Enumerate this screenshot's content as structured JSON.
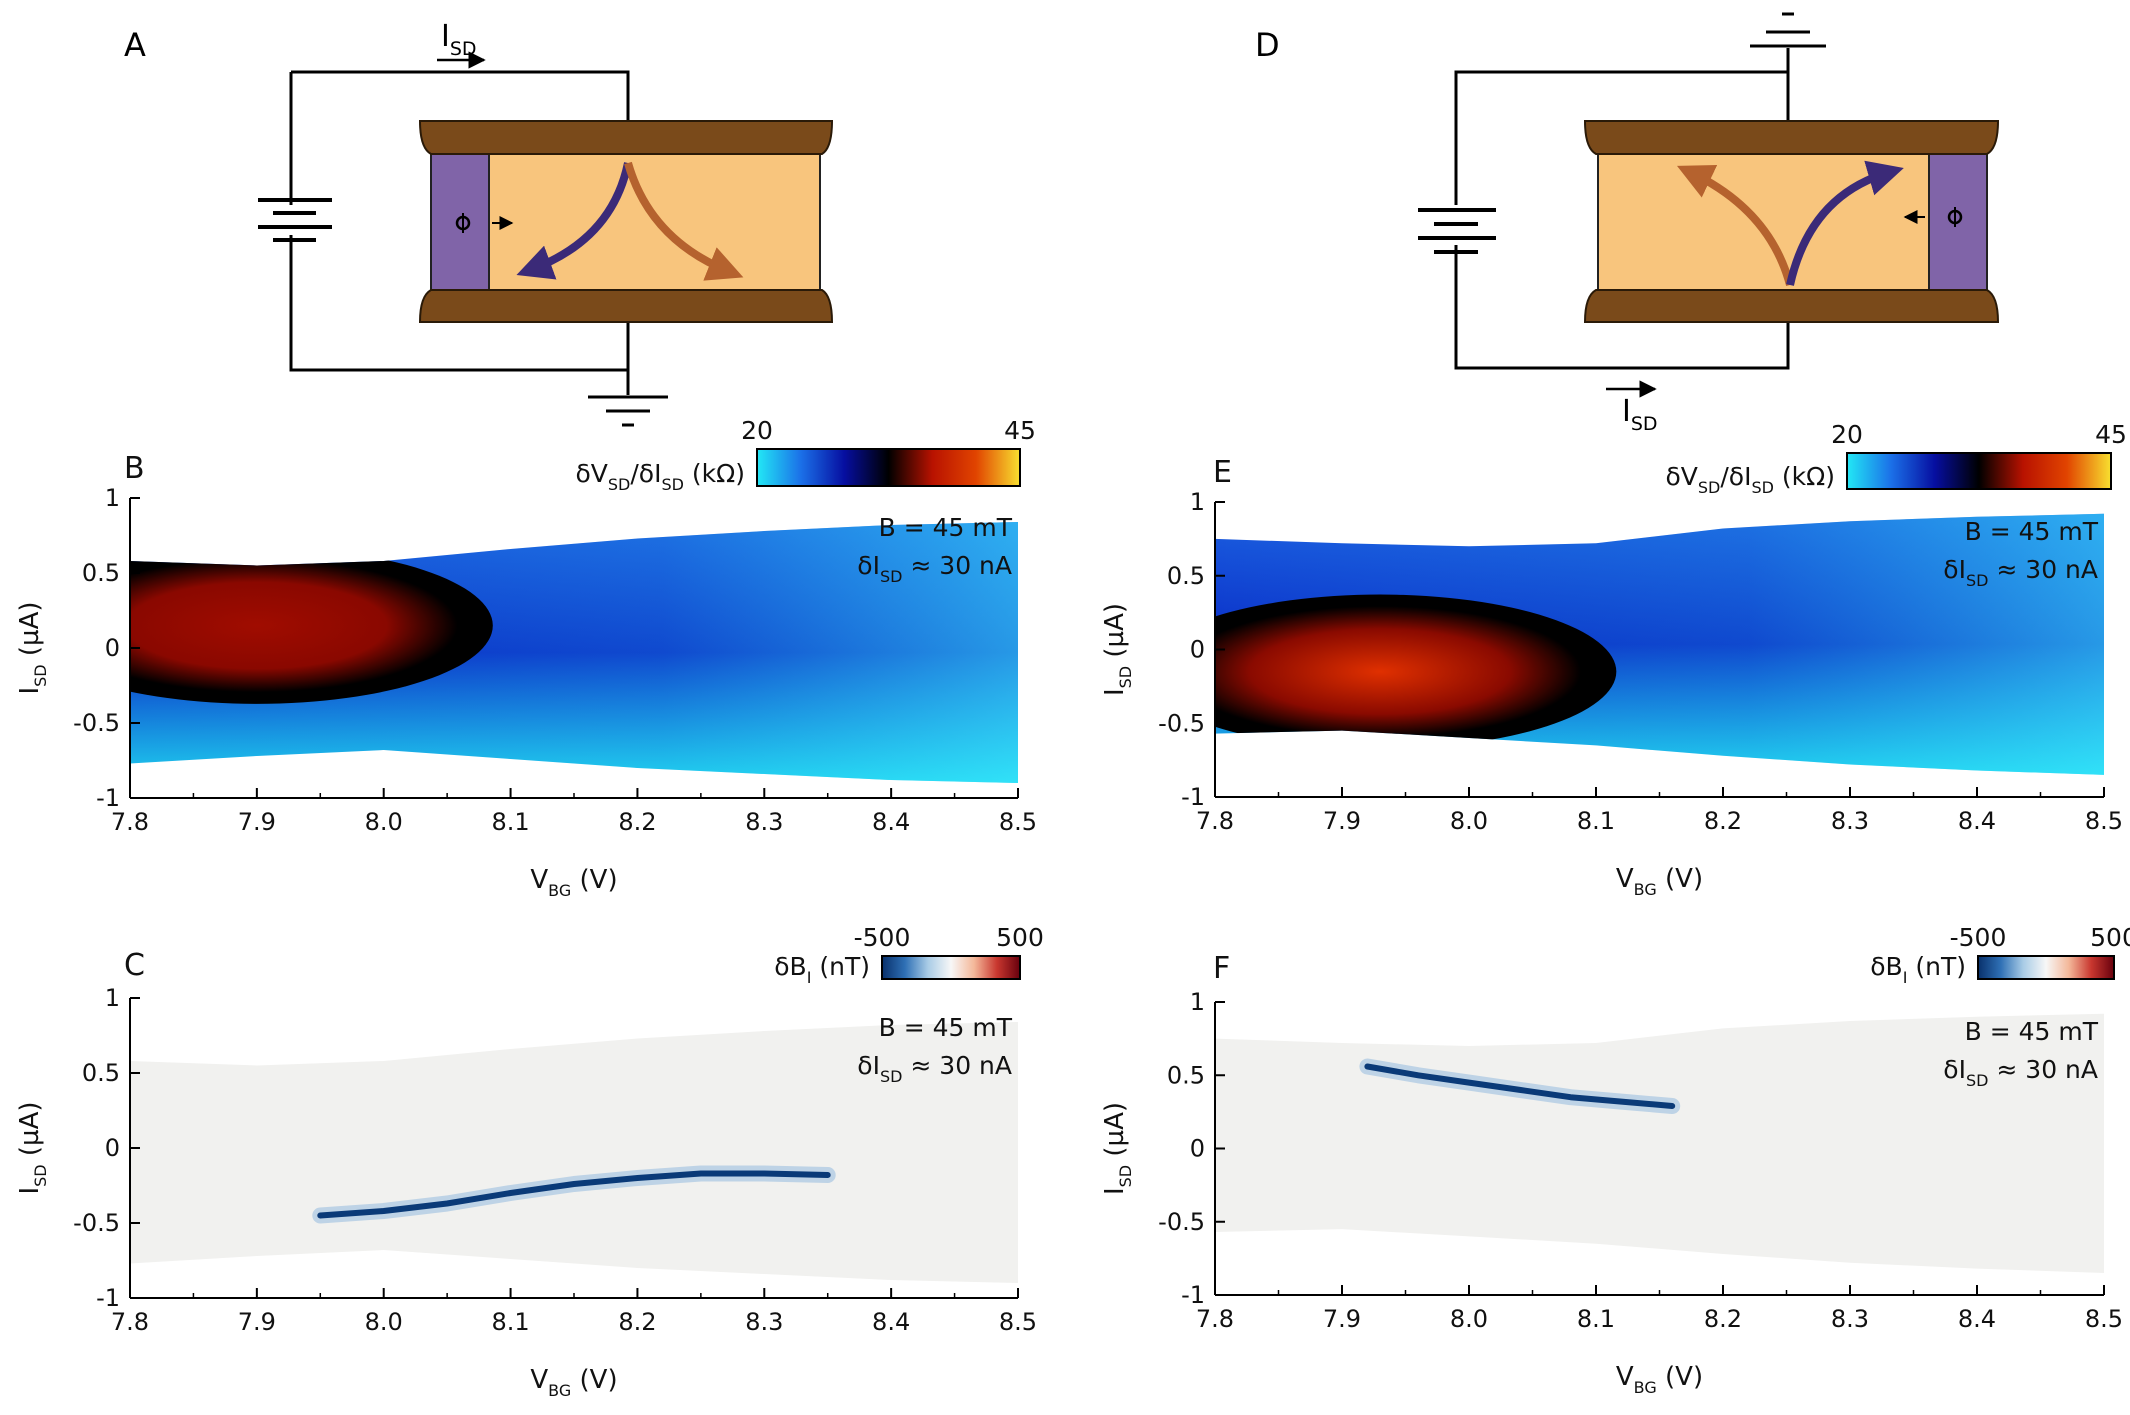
{
  "panels": {
    "A": "A",
    "B": "B",
    "C": "C",
    "D": "D",
    "E": "E",
    "F": "F"
  },
  "circuit": {
    "current_label": "I",
    "current_sub": "SD",
    "ground_minus": "-"
  },
  "chart_data": [
    {
      "panel": "B",
      "type": "heatmap",
      "x": [
        7.8,
        7.9,
        8.0,
        8.1,
        8.2,
        8.3,
        8.4,
        8.5
      ],
      "y_ticks": [
        1,
        0.5,
        0,
        -0.5,
        -1
      ],
      "xlabel": "V",
      "xlabel_sub": "BG",
      "xlabel_unit": " (V)",
      "ylabel": "I",
      "ylabel_sub": "SD",
      "ylabel_unit": " (µA)",
      "xlim": [
        7.8,
        8.5
      ],
      "ylim": [
        -1,
        1
      ],
      "colorbar": {
        "label": "δV",
        "label_sub1": "SD",
        "label_mid": "/δI",
        "label_sub2": "SD",
        "label_unit": " (kΩ)",
        "min": 20,
        "max": 45,
        "colormap": [
          "#22e8f5",
          "#1b70e8",
          "#060ea0",
          "#000000",
          "#b81200",
          "#e14400",
          "#f8e030"
        ]
      },
      "annotations": {
        "field": "B = 45 mT",
        "excitation": "δI",
        "excitation_sub": "SD",
        "excitation_val": " ≈ 30 nA"
      },
      "envelope": {
        "x": [
          7.8,
          7.9,
          8.0,
          8.1,
          8.2,
          8.3,
          8.4,
          8.5
        ],
        "upper": [
          0.58,
          0.55,
          0.58,
          0.66,
          0.73,
          0.78,
          0.82,
          0.84
        ],
        "lower": [
          -0.77,
          -0.72,
          -0.68,
          -0.74,
          -0.8,
          -0.84,
          -0.88,
          -0.9
        ]
      }
    },
    {
      "panel": "C",
      "type": "heatmap",
      "x": [
        7.8,
        7.9,
        8.0,
        8.1,
        8.2,
        8.3,
        8.4,
        8.5
      ],
      "y_ticks": [
        1,
        0.5,
        0,
        -0.5,
        -1
      ],
      "xlabel": "V",
      "xlabel_sub": "BG",
      "xlabel_unit": " (V)",
      "ylabel": "I",
      "ylabel_sub": "SD",
      "ylabel_unit": " (µA)",
      "xlim": [
        7.8,
        8.5
      ],
      "ylim": [
        -1,
        1
      ],
      "colorbar": {
        "label": "δB",
        "label_sub1": "I",
        "label_mid": "",
        "label_sub2": "",
        "label_unit": " (nT)",
        "min": -500,
        "max": 500,
        "colormap": [
          "#08306b",
          "#2f70b5",
          "#a9cce6",
          "#f7f7f7",
          "#f4b89a",
          "#c8372f",
          "#67000d"
        ]
      },
      "annotations": {
        "field": "B = 45 mT",
        "excitation": "δI",
        "excitation_sub": "SD",
        "excitation_val": " ≈ 30 nA"
      },
      "feature": {
        "x": [
          7.95,
          8.0,
          8.05,
          8.1,
          8.15,
          8.2,
          8.25,
          8.3,
          8.35
        ],
        "y": [
          -0.45,
          -0.42,
          -0.37,
          -0.3,
          -0.24,
          -0.2,
          -0.17,
          -0.17,
          -0.18
        ]
      },
      "envelope": {
        "x": [
          7.8,
          7.9,
          8.0,
          8.1,
          8.2,
          8.3,
          8.4,
          8.5
        ],
        "upper": [
          0.58,
          0.55,
          0.58,
          0.66,
          0.73,
          0.78,
          0.82,
          0.84
        ],
        "lower": [
          -0.77,
          -0.72,
          -0.68,
          -0.74,
          -0.8,
          -0.84,
          -0.88,
          -0.9
        ]
      }
    },
    {
      "panel": "E",
      "type": "heatmap",
      "x": [
        7.8,
        7.9,
        8.0,
        8.1,
        8.2,
        8.3,
        8.4,
        8.5
      ],
      "y_ticks": [
        1,
        0.5,
        0,
        -0.5,
        -1
      ],
      "xlabel": "V",
      "xlabel_sub": "BG",
      "xlabel_unit": " (V)",
      "ylabel": "I",
      "ylabel_sub": "SD",
      "ylabel_unit": " (µA)",
      "xlim": [
        7.8,
        8.5
      ],
      "ylim": [
        -1,
        1
      ],
      "colorbar": {
        "label": "δV",
        "label_sub1": "SD",
        "label_mid": "/δI",
        "label_sub2": "SD",
        "label_unit": " (kΩ)",
        "min": 20,
        "max": 45,
        "colormap": [
          "#22e8f5",
          "#1b70e8",
          "#060ea0",
          "#000000",
          "#b81200",
          "#e14400",
          "#f8e030"
        ]
      },
      "annotations": {
        "field": "B = 45 mT",
        "excitation": "δI",
        "excitation_sub": "SD",
        "excitation_val": " ≈ 30 nA"
      },
      "envelope": {
        "x": [
          7.8,
          7.9,
          8.0,
          8.1,
          8.2,
          8.3,
          8.4,
          8.5
        ],
        "upper": [
          0.75,
          0.72,
          0.7,
          0.72,
          0.82,
          0.87,
          0.9,
          0.92
        ],
        "lower": [
          -0.57,
          -0.55,
          -0.6,
          -0.65,
          -0.72,
          -0.78,
          -0.82,
          -0.85
        ]
      }
    },
    {
      "panel": "F",
      "type": "heatmap",
      "x": [
        7.8,
        7.9,
        8.0,
        8.1,
        8.2,
        8.3,
        8.4,
        8.5
      ],
      "y_ticks": [
        1,
        0.5,
        0,
        -0.5,
        -1
      ],
      "xlabel": "V",
      "xlabel_sub": "BG",
      "xlabel_unit": " (V)",
      "ylabel": "I",
      "ylabel_sub": "SD",
      "ylabel_unit": " (µA)",
      "xlim": [
        7.8,
        8.5
      ],
      "ylim": [
        -1,
        1
      ],
      "colorbar": {
        "label": "δB",
        "label_sub1": "I",
        "label_mid": "",
        "label_sub2": "",
        "label_unit": " (nT)",
        "min": -500,
        "max": 500,
        "colormap": [
          "#08306b",
          "#2f70b5",
          "#a9cce6",
          "#f7f7f7",
          "#f4b89a",
          "#c8372f",
          "#67000d"
        ]
      },
      "annotations": {
        "field": "B = 45 mT",
        "excitation": "δI",
        "excitation_sub": "SD",
        "excitation_val": " ≈ 30 nA"
      },
      "feature": {
        "x": [
          7.92,
          7.96,
          8.0,
          8.04,
          8.08,
          8.12,
          8.16
        ],
        "y": [
          0.56,
          0.5,
          0.45,
          0.4,
          0.35,
          0.32,
          0.29
        ]
      },
      "envelope": {
        "x": [
          7.8,
          7.9,
          8.0,
          8.1,
          8.2,
          8.3,
          8.4,
          8.5
        ],
        "upper": [
          0.75,
          0.72,
          0.7,
          0.72,
          0.82,
          0.87,
          0.9,
          0.92
        ],
        "lower": [
          -0.57,
          -0.55,
          -0.6,
          -0.65,
          -0.72,
          -0.78,
          -0.82,
          -0.85
        ]
      }
    }
  ]
}
